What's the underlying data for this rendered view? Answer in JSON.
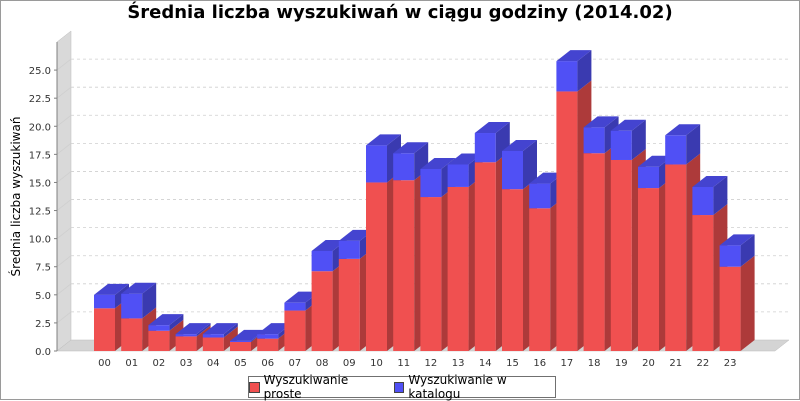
{
  "chart_data": {
    "type": "bar",
    "stacked": true,
    "three_d": true,
    "title": "Średnia liczba wyszukiwań w ciągu godziny (2014.02)",
    "xlabel": "",
    "ylabel": "Średnia liczba wyszukiwań",
    "ylim": [
      0,
      27.5
    ],
    "yticks": [
      "0.0",
      "2.5",
      "5.0",
      "7.5",
      "10.0",
      "12.5",
      "15.0",
      "17.5",
      "20.0",
      "22.5",
      "25.0"
    ],
    "grid": true,
    "legend_position": "bottom",
    "categories": [
      "00",
      "01",
      "02",
      "03",
      "04",
      "05",
      "06",
      "07",
      "08",
      "09",
      "10",
      "11",
      "12",
      "13",
      "14",
      "15",
      "16",
      "17",
      "18",
      "19",
      "20",
      "21",
      "22",
      "23"
    ],
    "series": [
      {
        "name": "Wyszukiwanie proste",
        "color": "#f05050",
        "values": [
          3.8,
          2.9,
          1.8,
          1.3,
          1.2,
          0.8,
          1.1,
          3.6,
          7.1,
          8.2,
          15.0,
          15.2,
          13.7,
          14.6,
          16.8,
          14.4,
          12.7,
          23.1,
          17.6,
          17.0,
          14.5,
          16.6,
          12.1,
          7.5
        ]
      },
      {
        "name": "Wyszukiwanie w katalogu",
        "color": "#5050f5",
        "values": [
          1.2,
          2.2,
          0.5,
          0.2,
          0.3,
          0.1,
          0.4,
          0.7,
          1.8,
          1.6,
          3.3,
          2.4,
          2.5,
          2.0,
          2.6,
          3.4,
          2.2,
          2.7,
          2.3,
          2.6,
          1.9,
          2.6,
          2.5,
          1.9
        ]
      }
    ]
  }
}
